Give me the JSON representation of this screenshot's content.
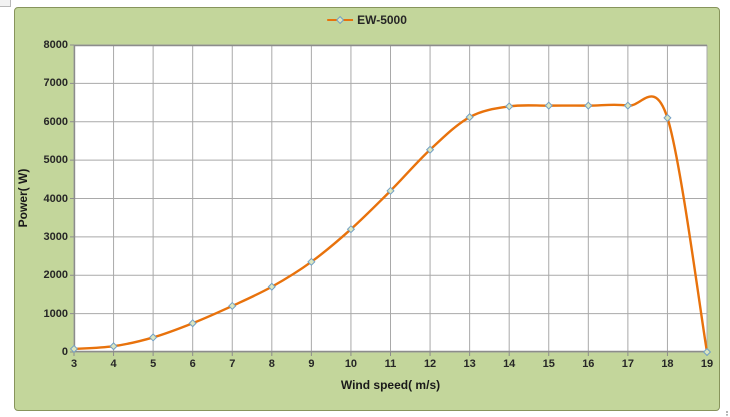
{
  "chart": {
    "legend": {
      "series_label": "EW-5000"
    },
    "colors": {
      "chart_background": "#c3d69b",
      "frame_border": "#87945c",
      "plot_background": "#ffffff",
      "gridline": "#a9a9a9",
      "axis_line": "#8c8c8c",
      "series_line": "#e8720c",
      "marker_fill": "#dce6bf",
      "marker_stroke": "#73a0c4",
      "tick_text": "#262626"
    }
  },
  "chart_data": {
    "type": "line",
    "title": "",
    "series": [
      {
        "name": "EW-5000",
        "x": [
          3,
          4,
          5,
          6,
          7,
          8,
          9,
          10,
          11,
          12,
          13,
          14,
          15,
          16,
          17,
          18,
          19
        ],
        "y": [
          80,
          150,
          380,
          750,
          1200,
          1700,
          2350,
          3200,
          4200,
          5270,
          6120,
          6400,
          6420,
          6420,
          6420,
          6100,
          0
        ]
      }
    ],
    "xlabel": "Wind speed( m/s)",
    "ylabel": "Power( W)",
    "xlim": [
      3,
      19
    ],
    "ylim": [
      0,
      8000
    ],
    "x_ticks": [
      "3",
      "4",
      "5",
      "6",
      "7",
      "8",
      "9",
      "10",
      "11",
      "12",
      "13",
      "14",
      "15",
      "16",
      "17",
      "18",
      "19"
    ],
    "y_ticks": [
      "0",
      "1000",
      "2000",
      "3000",
      "4000",
      "5000",
      "6000",
      "7000",
      "8000"
    ],
    "grid": true,
    "line_smoothing": true,
    "marker": "diamond",
    "legend_position": "top-center"
  }
}
